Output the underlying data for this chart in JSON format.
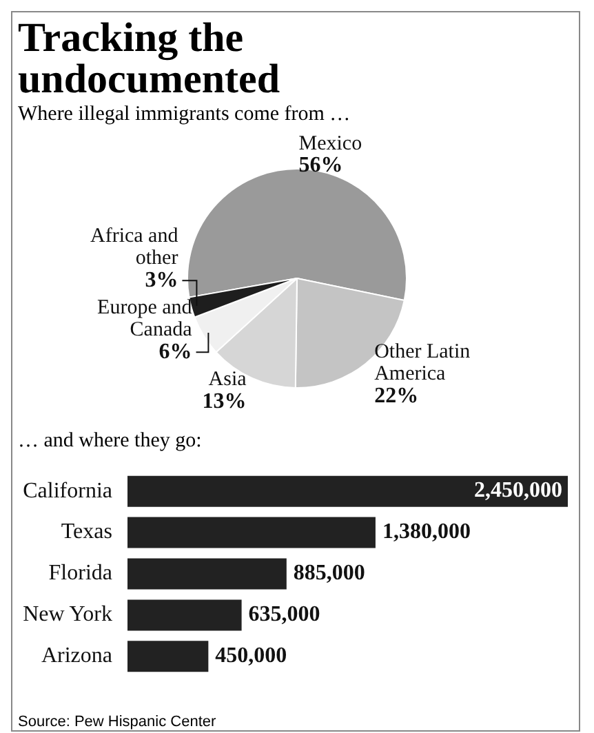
{
  "chart_data": [
    {
      "type": "pie",
      "title": "Tracking the undocumented",
      "subtitle": "Where illegal immigrants come from …",
      "categories": [
        "Mexico",
        "Other Latin America",
        "Asia",
        "Europe and Canada",
        "Africa and other"
      ],
      "values": [
        56,
        22,
        13,
        6,
        3
      ],
      "value_labels": [
        "56%",
        "22%",
        "13%",
        "6%",
        "3%"
      ],
      "colors": [
        "#9a9a9a",
        "#c4c4c4",
        "#d6d6d6",
        "#f0f0f0",
        "#1e1e1e"
      ],
      "legend": false
    },
    {
      "type": "bar",
      "orientation": "horizontal",
      "title": "… and where they go:",
      "categories": [
        "California",
        "Texas",
        "Florida",
        "New York",
        "Arizona"
      ],
      "values": [
        2450000,
        1380000,
        885000,
        635000,
        450000
      ],
      "value_labels": [
        "2,450,000",
        "1,380,000",
        "885,000",
        "635,000",
        "450,000"
      ],
      "color": "#222222",
      "xlim": [
        0,
        2450000
      ],
      "tick_labels": "y",
      "legend": false,
      "annotations": [
        "Source: Pew Hispanic Center"
      ]
    }
  ]
}
